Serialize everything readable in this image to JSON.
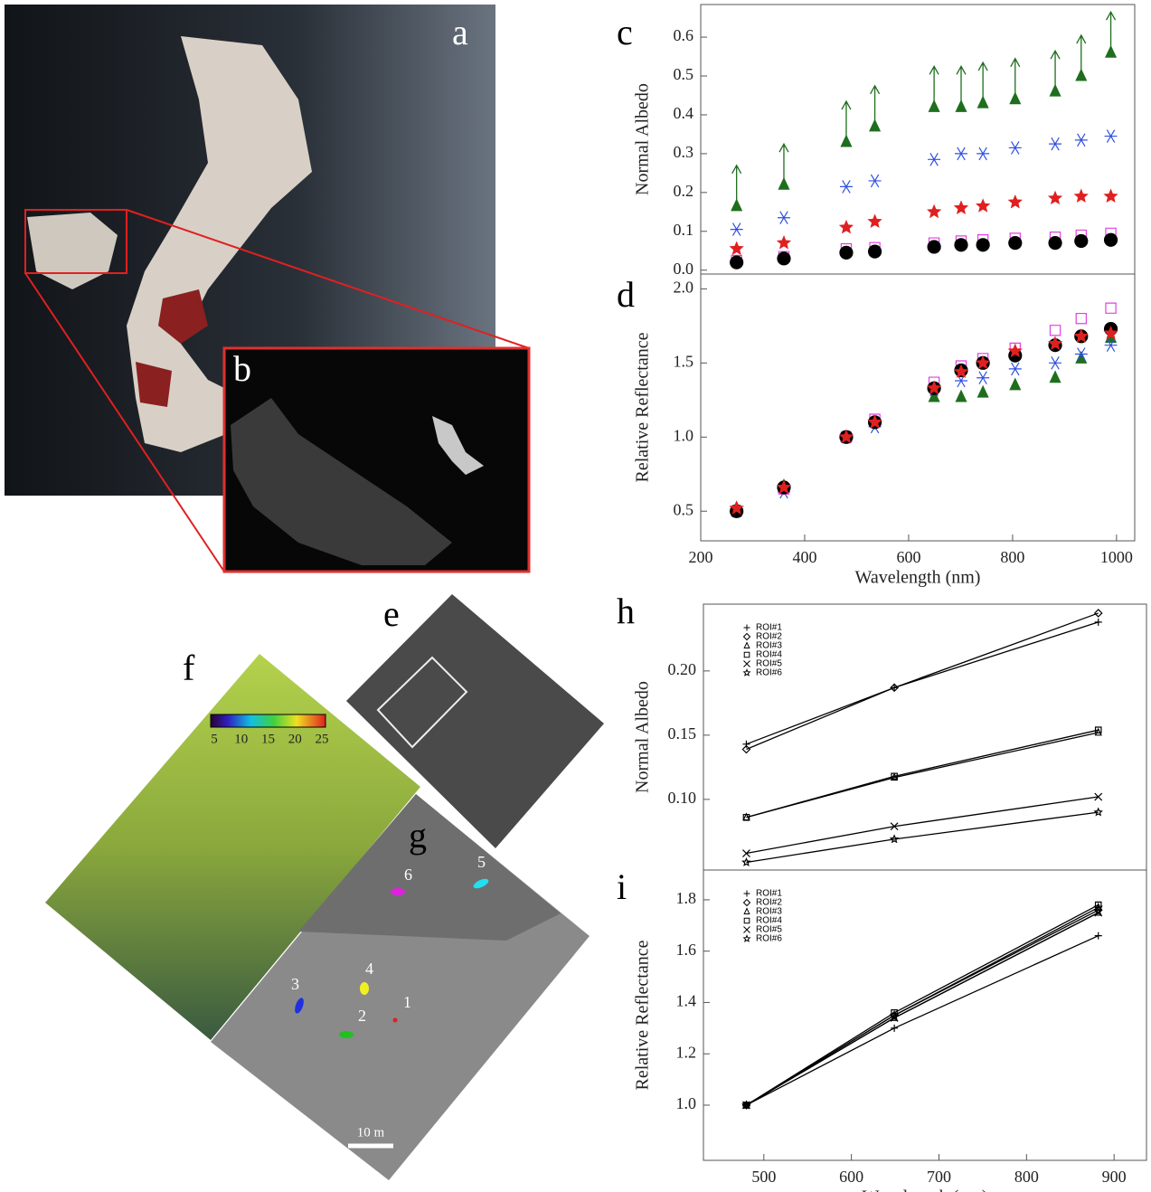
{
  "chart_data": [
    {
      "type": "scatter",
      "panel_label": "c",
      "y_label": "Normal Albedo",
      "x": [
        269,
        360,
        480,
        535,
        649,
        701,
        743,
        805,
        882,
        932,
        989
      ],
      "xlim": [
        200,
        1035
      ],
      "ylim": [
        -0.01,
        0.684
      ],
      "yticks": [
        {
          "value": 0,
          "label": "0.0"
        },
        0.1,
        0.2,
        0.3,
        0.4,
        0.5,
        0.6
      ],
      "series": [
        {
          "color": "#1e6e1e",
          "marker": "triangle",
          "lower_limit": true,
          "values": [
            0.165,
            0.22,
            0.33,
            0.37,
            0.42,
            0.42,
            0.43,
            0.44,
            0.46,
            0.5,
            0.56
          ]
        },
        {
          "color": "#3050e0",
          "marker": "asterisk",
          "values": [
            0.105,
            0.135,
            0.215,
            0.23,
            0.285,
            0.3,
            0.3,
            0.315,
            0.325,
            0.335,
            0.345
          ]
        },
        {
          "color": "#e02020",
          "marker": "star",
          "values": [
            0.055,
            0.07,
            0.11,
            0.125,
            0.15,
            0.16,
            0.165,
            0.175,
            0.185,
            0.19,
            0.19
          ]
        },
        {
          "color": "#e040e0",
          "marker": "square",
          "values": [
            0.025,
            0.035,
            0.055,
            0.058,
            0.07,
            0.075,
            0.078,
            0.082,
            0.085,
            0.09,
            0.095
          ]
        },
        {
          "color": "#000000",
          "marker": "circle",
          "values": [
            0.02,
            0.03,
            0.045,
            0.048,
            0.06,
            0.065,
            0.065,
            0.07,
            0.07,
            0.075,
            0.078
          ]
        }
      ]
    },
    {
      "type": "scatter",
      "panel_label": "d",
      "y_label": "Relative Reflectance",
      "x_label": "Wavelength (nm)",
      "x": [
        269,
        360,
        480,
        535,
        649,
        701,
        743,
        805,
        882,
        932,
        989
      ],
      "xlim": [
        200,
        1035
      ],
      "xticks": [
        200,
        400,
        600,
        800,
        1000
      ],
      "ylim": [
        0.3,
        2.1
      ],
      "yticks": [
        0.5,
        {
          "value": 1,
          "label": "1.0"
        },
        1.5,
        {
          "value": 2,
          "label": "2.0"
        }
      ],
      "series": [
        {
          "color": "#1e6e1e",
          "marker": "triangle",
          "values": [
            0.52,
            0.67,
            1.0,
            1.1,
            1.27,
            1.27,
            1.3,
            1.35,
            1.4,
            1.53,
            1.67
          ]
        },
        {
          "color": "#3050e0",
          "marker": "asterisk",
          "values": [
            0.5,
            0.63,
            1.0,
            1.07,
            1.32,
            1.38,
            1.4,
            1.46,
            1.5,
            1.56,
            1.62
          ]
        },
        {
          "color": "#e040e0",
          "marker": "square",
          "values": [
            0.5,
            0.65,
            1.0,
            1.12,
            1.37,
            1.48,
            1.53,
            1.6,
            1.72,
            1.8,
            1.87
          ]
        },
        {
          "color": "#000000",
          "marker": "circle",
          "values": [
            0.5,
            0.66,
            1.0,
            1.1,
            1.33,
            1.45,
            1.5,
            1.55,
            1.62,
            1.68,
            1.73
          ]
        },
        {
          "color": "#e02020",
          "marker": "star",
          "values": [
            0.52,
            0.66,
            1.0,
            1.1,
            1.33,
            1.44,
            1.5,
            1.58,
            1.63,
            1.68,
            1.7
          ]
        }
      ]
    },
    {
      "type": "line",
      "panel_label": "h",
      "y_label": "Normal Albedo",
      "legend": "upper left",
      "x": [
        480,
        649,
        882
      ],
      "xlim": [
        431,
        937
      ],
      "ylim": [
        0.045,
        0.252
      ],
      "yticks": [
        {
          "value": 0.1,
          "label": "0.10"
        },
        0.15,
        {
          "value": 0.2,
          "label": "0.20"
        }
      ],
      "series": [
        {
          "name": "ROI#1",
          "color": "#000000",
          "marker": "plus",
          "values": [
            0.143,
            0.187,
            0.238
          ]
        },
        {
          "name": "ROI#2",
          "color": "#000000",
          "marker": "diamond",
          "values": [
            0.139,
            0.187,
            0.245
          ]
        },
        {
          "name": "ROI#3",
          "color": "#000000",
          "marker": "triangle",
          "values": [
            0.086,
            0.117,
            0.152
          ]
        },
        {
          "name": "ROI#4",
          "color": "#000000",
          "marker": "square",
          "values": [
            0.086,
            0.118,
            0.154
          ]
        },
        {
          "name": "ROI#5",
          "color": "#000000",
          "marker": "x",
          "values": [
            0.058,
            0.079,
            0.102
          ]
        },
        {
          "name": "ROI#6",
          "color": "#000000",
          "marker": "star",
          "values": [
            0.051,
            0.069,
            0.09
          ]
        }
      ]
    },
    {
      "type": "line",
      "panel_label": "i",
      "y_label": "Relative Reflectance",
      "x_label": "Wavelength (nm)",
      "legend": "upper left",
      "x": [
        480,
        649,
        882
      ],
      "xlim": [
        431,
        937
      ],
      "xticks": [
        500,
        600,
        700,
        800,
        900
      ],
      "ylim": [
        0.785,
        1.916
      ],
      "yticks": [
        {
          "value": 1,
          "label": "1.0"
        },
        1.2,
        1.4,
        1.6,
        1.8
      ],
      "series": [
        {
          "name": "ROI#1",
          "color": "#000000",
          "marker": "plus",
          "values": [
            1.0,
            1.3,
            1.66
          ]
        },
        {
          "name": "ROI#2",
          "color": "#000000",
          "marker": "diamond",
          "values": [
            1.0,
            1.35,
            1.76
          ]
        },
        {
          "name": "ROI#3",
          "color": "#000000",
          "marker": "triangle",
          "values": [
            1.0,
            1.34,
            1.75
          ]
        },
        {
          "name": "ROI#4",
          "color": "#000000",
          "marker": "square",
          "values": [
            1.0,
            1.36,
            1.78
          ]
        },
        {
          "name": "ROI#5",
          "color": "#000000",
          "marker": "x",
          "values": [
            1.0,
            1.34,
            1.75
          ]
        },
        {
          "name": "ROI#6",
          "color": "#000000",
          "marker": "star",
          "values": [
            1.0,
            1.35,
            1.77
          ]
        }
      ]
    }
  ],
  "image_labels": [
    "a",
    "b",
    "e",
    "f",
    "g"
  ],
  "colorbar_ticks": [
    5,
    10,
    15,
    20,
    25
  ],
  "roi_labels": [
    "1",
    "2",
    "3",
    "4",
    "5",
    "6"
  ],
  "scale_bar": "10 m"
}
